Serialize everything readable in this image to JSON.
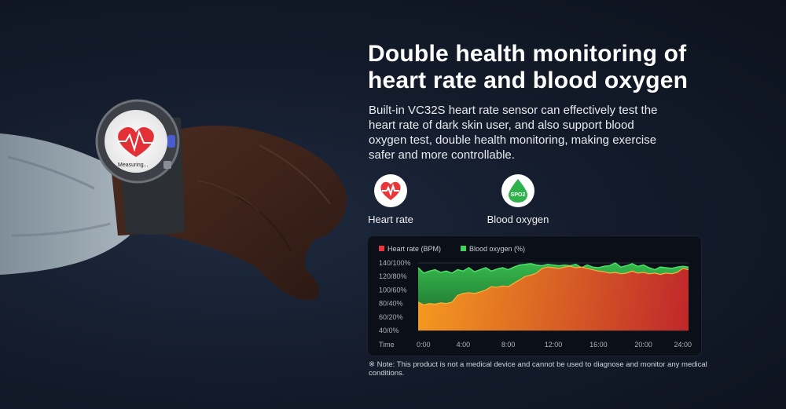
{
  "headline": {
    "line1": "Double health monitoring of",
    "line2": "heart rate and blood oxygen"
  },
  "description": {
    "line1": "Built-in VC32S heart rate sensor can effectively test the",
    "line2": "heart rate of dark skin user, and also support blood",
    "line3": "oxygen test, double health monitoring, making exercise",
    "line4": "safer and more controllable."
  },
  "watch": {
    "screen_text": "Measuring..."
  },
  "metrics": {
    "heart_rate": {
      "label": "Heart rate",
      "icon": "heart-icon",
      "color": "#e8373a"
    },
    "blood_oxygen": {
      "label": "Blood oxygen",
      "icon": "spo2-icon",
      "icon_text": "SPO2",
      "color": "#2fb24c"
    }
  },
  "chart_data": {
    "type": "area",
    "legend": [
      {
        "name": "Heart rate (BPM)",
        "color": "#e8373a"
      },
      {
        "name": "Blood oxygen (%)",
        "color": "#3fd45a"
      }
    ],
    "legend_position": "top-left",
    "xlabel": "Time",
    "x_ticks": [
      "0:00",
      "4:00",
      "8:00",
      "12:00",
      "16:00",
      "20:00",
      "24:00"
    ],
    "x_range": [
      0,
      24
    ],
    "y_ticks": [
      "40/0%",
      "60/20%",
      "80/40%",
      "100/60%",
      "120/80%",
      "140/100%"
    ],
    "y_range": [
      40,
      140
    ],
    "grid": true,
    "series": [
      {
        "name": "Heart rate (BPM)",
        "x": [
          0,
          0.5,
          1,
          1.5,
          2,
          2.5,
          3,
          3.5,
          4,
          4.5,
          5,
          5.5,
          6,
          6.5,
          7,
          7.5,
          8,
          8.5,
          9,
          9.5,
          10,
          10.5,
          11,
          11.5,
          12,
          12.5,
          13,
          13.5,
          14,
          14.5,
          15,
          15.5,
          16,
          16.5,
          17,
          17.5,
          18,
          18.5,
          19,
          19.5,
          20,
          20.5,
          21,
          21.5,
          22,
          22.5,
          23,
          23.5,
          24
        ],
        "values": [
          82,
          78,
          80,
          79,
          81,
          80,
          82,
          92,
          95,
          96,
          95,
          97,
          100,
          105,
          104,
          106,
          105,
          110,
          115,
          120,
          122,
          125,
          132,
          134,
          133,
          132,
          134,
          135,
          133,
          134,
          132,
          130,
          128,
          127,
          125,
          126,
          124,
          125,
          128,
          125,
          126,
          124,
          125,
          123,
          125,
          124,
          126,
          132,
          130
        ]
      },
      {
        "name": "Blood oxygen (%)",
        "x": [
          0,
          0.5,
          1,
          1.5,
          2,
          2.5,
          3,
          3.5,
          4,
          4.5,
          5,
          5.5,
          6,
          6.5,
          7,
          7.5,
          8,
          8.5,
          9,
          9.5,
          10,
          10.5,
          11,
          11.5,
          12,
          12.5,
          13,
          13.5,
          14,
          14.5,
          15,
          15.5,
          16,
          16.5,
          17,
          17.5,
          18,
          18.5,
          19,
          19.5,
          20,
          20.5,
          21,
          21.5,
          22,
          22.5,
          23,
          23.5,
          24
        ],
        "values": [
          133,
          125,
          128,
          130,
          126,
          128,
          125,
          130,
          128,
          133,
          127,
          130,
          133,
          128,
          131,
          133,
          130,
          134,
          137,
          138,
          139,
          137,
          136,
          138,
          137,
          136,
          137,
          136,
          138,
          133,
          137,
          134,
          133,
          135,
          136,
          140,
          134,
          136,
          139,
          135,
          137,
          133,
          130,
          134,
          133,
          132,
          134,
          135,
          134
        ]
      }
    ]
  },
  "note": "※ Note: This product is not a medical device and cannot be used to diagnose and monitor any medical conditions."
}
